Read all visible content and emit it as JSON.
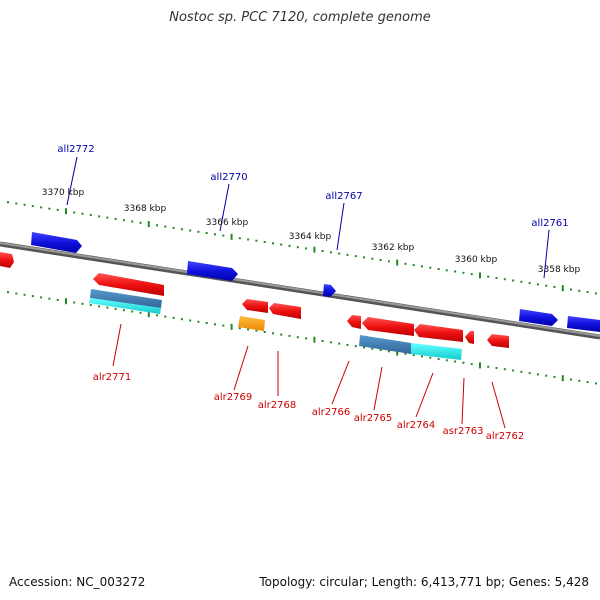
{
  "title": "Nostoc sp. PCC 7120, complete genome",
  "footer": {
    "accession": "Accession: NC_003272",
    "topology": "Topology: circular; Length: 6,413,771 bp; Genes: 5,428"
  },
  "scale_labels": [
    "3370 kbp",
    "3368 kbp",
    "3366 kbp",
    "3364 kbp",
    "3362 kbp",
    "3360 kbp",
    "3358 kbp"
  ],
  "genes_top": [
    "all2772",
    "all2770",
    "all2767",
    "all2761"
  ],
  "genes_bottom": [
    "alr2771",
    "alr2769",
    "alr2768",
    "alr2766",
    "alr2765",
    "alr2764",
    "asr2763",
    "alr2762"
  ],
  "colors": {
    "forward_gene": "#ee1111",
    "reverse_gene": "#1111dd",
    "top_label": "#0000aa",
    "bottom_label": "#cc0000",
    "backbone": "#808080",
    "tick": "#228822",
    "cds_light": "#11dddd",
    "cds_dark": "#3377aa",
    "special_gene": "#ff9911"
  }
}
